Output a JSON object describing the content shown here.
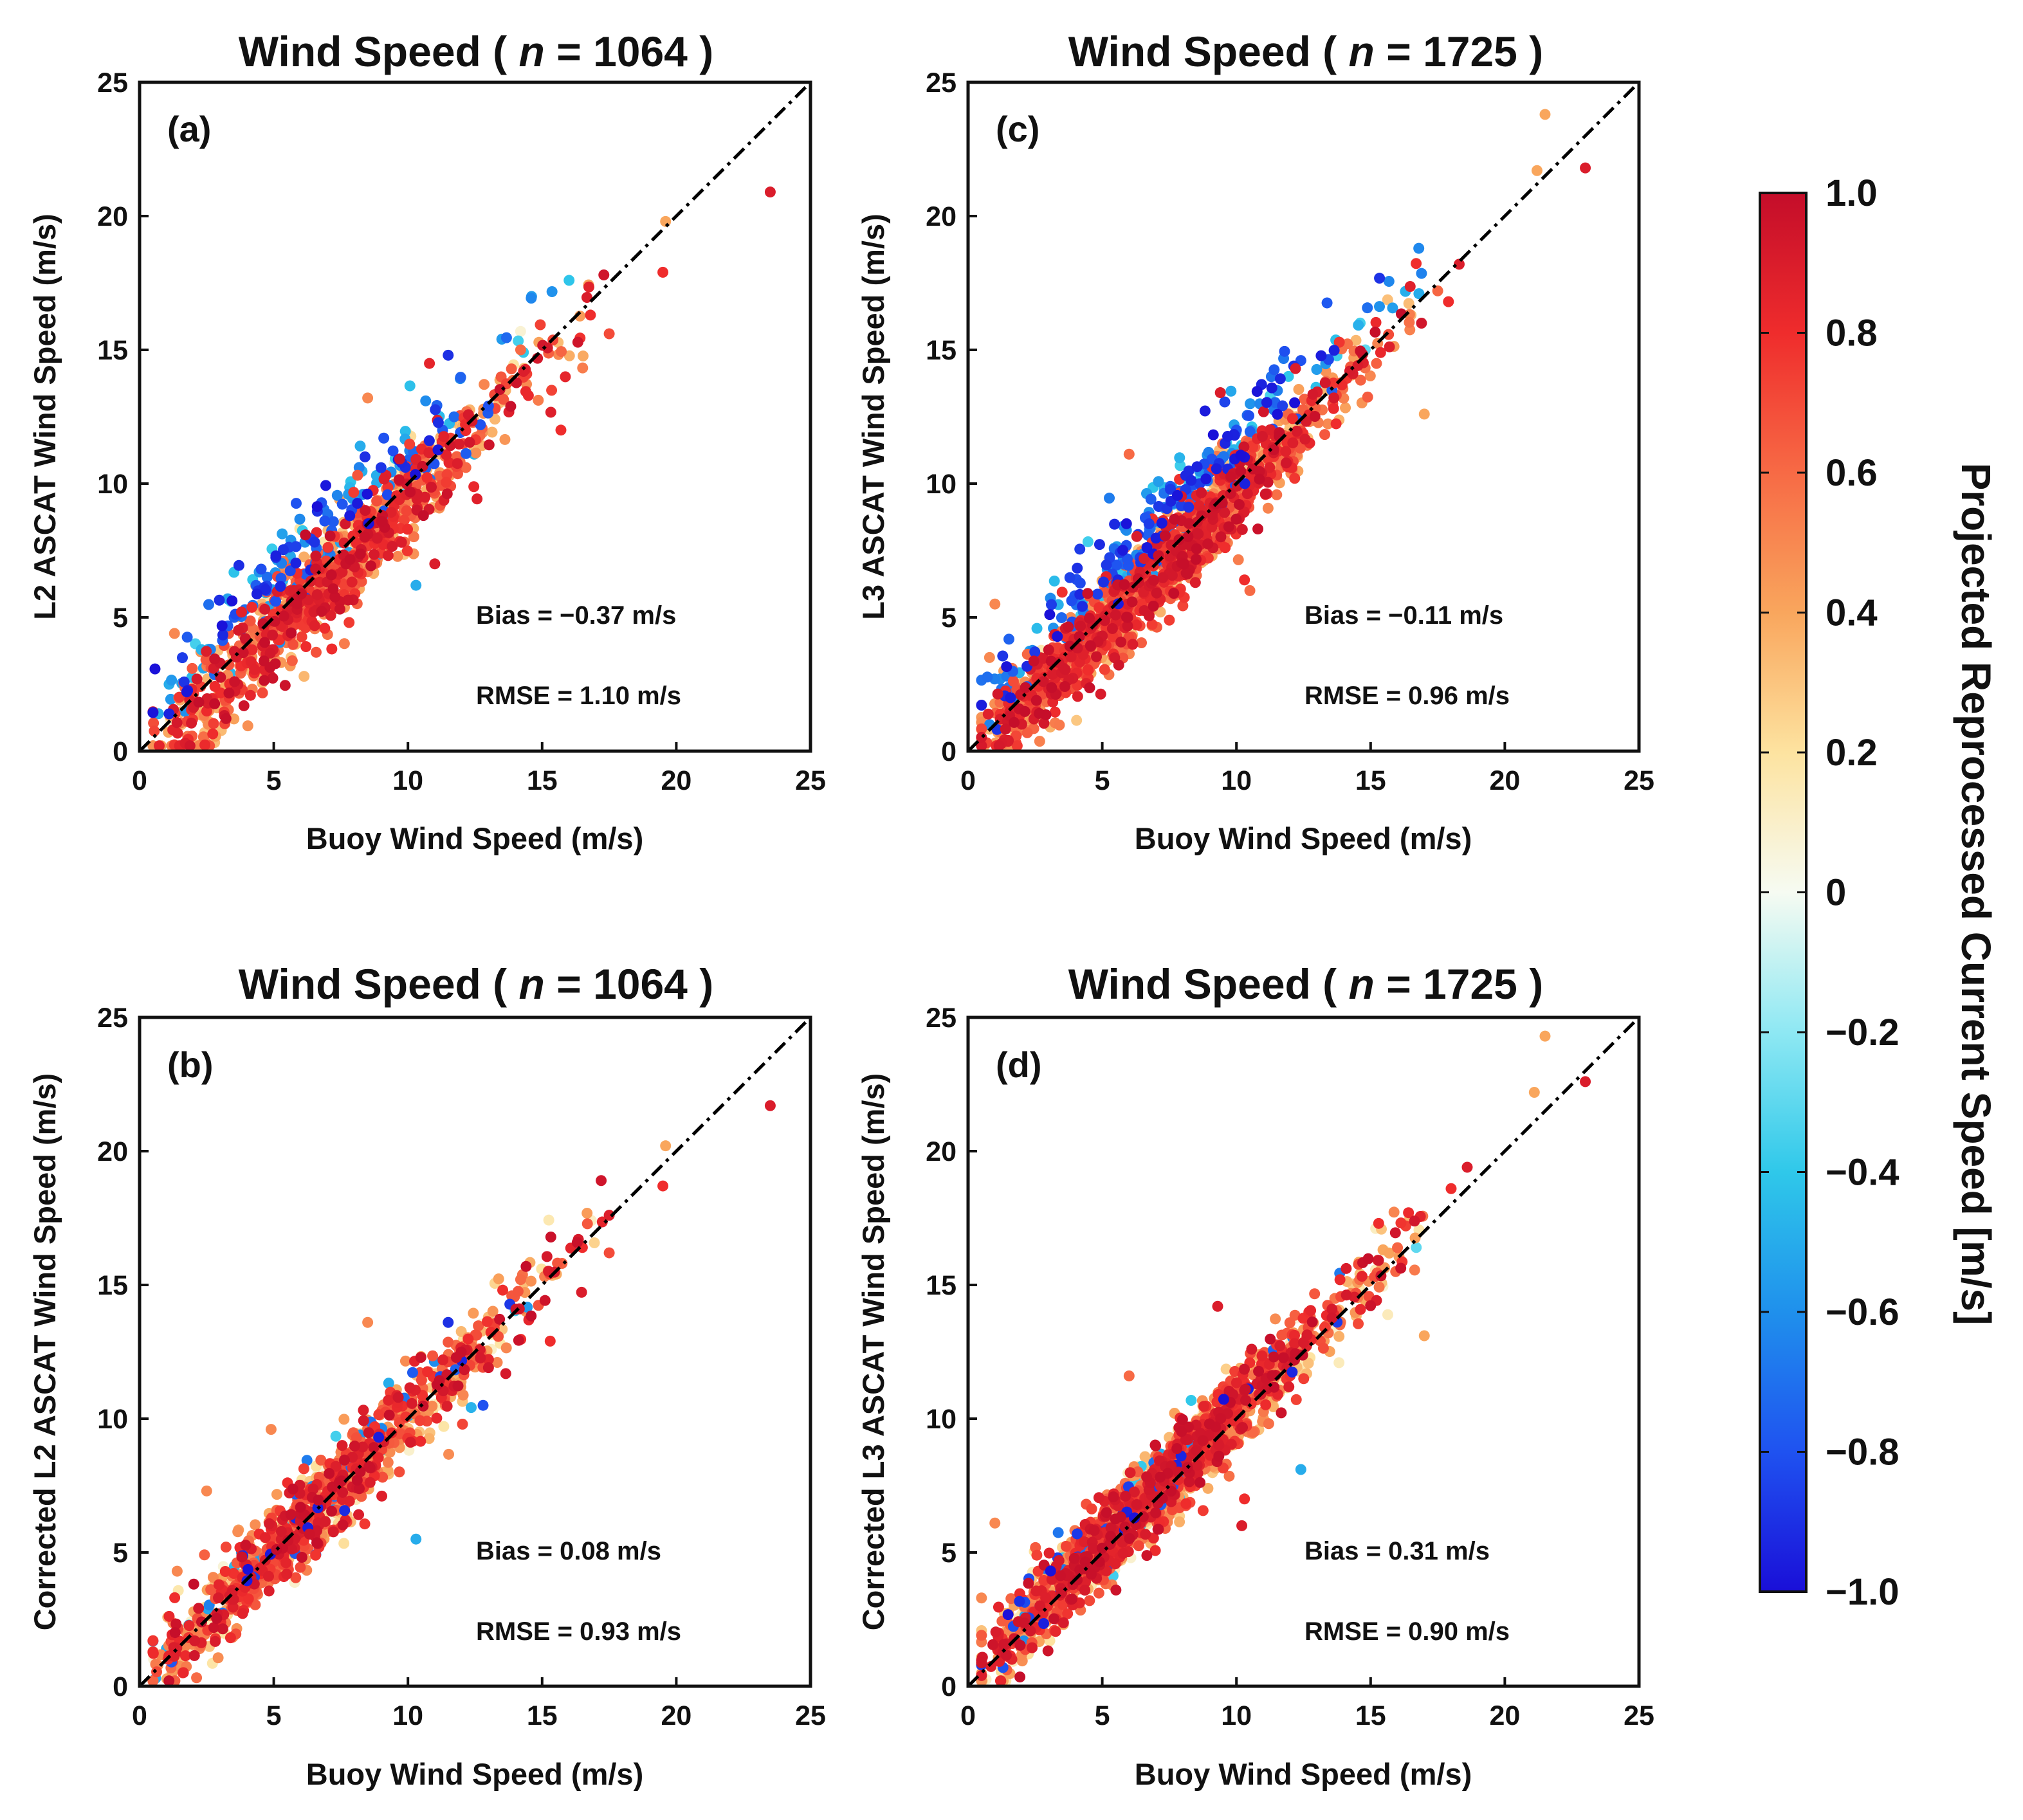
{
  "colorbar": {
    "label": "Projected Reprocessed Current Speed [m/s]",
    "range": [
      -1.0,
      1.0
    ],
    "ticks": [
      "1.0",
      "0.8",
      "0.6",
      "0.4",
      "0.2",
      "0",
      "−0.2",
      "−0.4",
      "−0.6",
      "−0.8",
      "−1.0"
    ],
    "colormap": [
      "#1a0fd8",
      "#1f52f0",
      "#1f90ec",
      "#2fc8ea",
      "#8ee8f3",
      "#f6fbf2",
      "#fde3a0",
      "#f9a65d",
      "#f76a45",
      "#ef2c2c",
      "#c40d2a"
    ]
  },
  "chart_data": [
    {
      "id": "a",
      "type": "scatter",
      "panel_label": "(a)",
      "title_prefix": "Wind Speed (",
      "title_n": "n",
      "title_eq": "= 1064 )",
      "xlabel": "Buoy Wind Speed (m/s)",
      "ylabel": "L2 ASCAT Wind Speed (m/s)",
      "xlim": [
        0,
        25
      ],
      "ylim": [
        0,
        25
      ],
      "xticks": [
        "0",
        "5",
        "10",
        "15",
        "20",
        "25"
      ],
      "yticks": [
        "0",
        "5",
        "10",
        "15",
        "20",
        "25"
      ],
      "stats": {
        "bias": "Bias  =  −0.37 m/s",
        "rmse": "RMSE = 1.10 m/s"
      },
      "one_to_one_line": true,
      "points_summary": {
        "n": 1064,
        "bias": -0.37,
        "rmse": 1.1,
        "x_range": [
          0.5,
          23.5
        ],
        "seed": 11
      },
      "notable_points": [
        {
          "x": 23.5,
          "y": 20.9,
          "c": 0.9
        },
        {
          "x": 19.5,
          "y": 17.9,
          "c": 0.8
        },
        {
          "x": 19.6,
          "y": 19.8,
          "c": 0.4
        },
        {
          "x": 17.3,
          "y": 17.8,
          "c": 0.95
        },
        {
          "x": 17.5,
          "y": 15.6,
          "c": 0.7
        },
        {
          "x": 16.8,
          "y": 16.3,
          "c": 0.8
        },
        {
          "x": 11.5,
          "y": 14.8,
          "c": -0.9
        },
        {
          "x": 10.3,
          "y": 6.2,
          "c": -0.5
        },
        {
          "x": 11.0,
          "y": 7.0,
          "c": 0.9
        },
        {
          "x": 9.1,
          "y": 11.7,
          "c": -0.8
        },
        {
          "x": 8.4,
          "y": 11.0,
          "c": -0.9
        },
        {
          "x": 12.7,
          "y": 12.2,
          "c": -0.8
        },
        {
          "x": 13.0,
          "y": 12.9,
          "c": -0.8
        },
        {
          "x": 1.1,
          "y": 2.5,
          "c": -0.5
        },
        {
          "x": 0.7,
          "y": 1.4,
          "c": -0.5
        },
        {
          "x": 1.3,
          "y": 4.4,
          "c": 0.5
        },
        {
          "x": 1.7,
          "y": 0.3,
          "c": 0.9
        },
        {
          "x": 15.7,
          "y": 12.0,
          "c": 0.8
        },
        {
          "x": 14.2,
          "y": 15.0,
          "c": 0.6
        },
        {
          "x": 8.5,
          "y": 13.2,
          "c": 0.5
        }
      ]
    },
    {
      "id": "c",
      "type": "scatter",
      "panel_label": "(c)",
      "title_prefix": "Wind Speed (",
      "title_n": "n",
      "title_eq": "= 1725 )",
      "xlabel": "Buoy Wind Speed (m/s)",
      "ylabel": "L3 ASCAT Wind Speed (m/s)",
      "xlim": [
        0,
        25
      ],
      "ylim": [
        0,
        25
      ],
      "xticks": [
        "0",
        "5",
        "10",
        "15",
        "20",
        "25"
      ],
      "yticks": [
        "0",
        "5",
        "10",
        "15",
        "20",
        "25"
      ],
      "stats": {
        "bias": "Bias  =  −0.11 m/s",
        "rmse": "RMSE = 0.96 m/s"
      },
      "one_to_one_line": true,
      "points_summary": {
        "n": 1725,
        "bias": -0.11,
        "rmse": 0.96,
        "x_range": [
          0.5,
          23.0
        ],
        "seed": 23
      },
      "notable_points": [
        {
          "x": 21.5,
          "y": 23.8,
          "c": 0.4
        },
        {
          "x": 21.2,
          "y": 21.7,
          "c": 0.4
        },
        {
          "x": 23.0,
          "y": 21.8,
          "c": 0.9
        },
        {
          "x": 18.3,
          "y": 18.2,
          "c": 0.9
        },
        {
          "x": 17.9,
          "y": 16.8,
          "c": 0.8
        },
        {
          "x": 16.8,
          "y": 17.1,
          "c": -0.5
        },
        {
          "x": 17.0,
          "y": 12.6,
          "c": 0.4
        },
        {
          "x": 12.4,
          "y": 14.6,
          "c": -0.8
        },
        {
          "x": 12.2,
          "y": 14.3,
          "c": 0.9
        },
        {
          "x": 10.3,
          "y": 6.4,
          "c": 0.8
        },
        {
          "x": 10.5,
          "y": 6.0,
          "c": 0.6
        },
        {
          "x": 6.0,
          "y": 11.1,
          "c": 0.6
        },
        {
          "x": 9.4,
          "y": 13.4,
          "c": 0.9
        },
        {
          "x": 0.8,
          "y": 3.5,
          "c": 0.5
        },
        {
          "x": 1.0,
          "y": 5.5,
          "c": 0.5
        },
        {
          "x": 1.2,
          "y": 1.2,
          "c": 0.9
        },
        {
          "x": 1.5,
          "y": 0.4,
          "c": 0.9
        },
        {
          "x": 14.8,
          "y": 15.0,
          "c": -0.3
        },
        {
          "x": 11.3,
          "y": 14.0,
          "c": -0.7
        },
        {
          "x": 10.0,
          "y": 12.0,
          "c": -0.8
        }
      ]
    },
    {
      "id": "b",
      "type": "scatter",
      "panel_label": "(b)",
      "title_prefix": "Wind Speed (",
      "title_n": "n",
      "title_eq": "= 1064 )",
      "xlabel": "Buoy Wind Speed (m/s)",
      "ylabel": "Corrected L2 ASCAT Wind Speed (m/s)",
      "xlim": [
        0,
        25
      ],
      "ylim": [
        0,
        25
      ],
      "xticks": [
        "0",
        "5",
        "10",
        "15",
        "20",
        "25"
      ],
      "yticks": [
        "0",
        "5",
        "10",
        "15",
        "20",
        "25"
      ],
      "stats": {
        "bias": "Bias  =  0.08 m/s",
        "rmse": "RMSE = 0.93 m/s"
      },
      "one_to_one_line": true,
      "points_summary": {
        "n": 1064,
        "bias": 0.08,
        "rmse": 0.93,
        "x_range": [
          0.5,
          23.5
        ],
        "seed": 37
      },
      "notable_points": [
        {
          "x": 23.5,
          "y": 21.7,
          "c": 0.9
        },
        {
          "x": 19.6,
          "y": 20.2,
          "c": 0.4
        },
        {
          "x": 19.5,
          "y": 18.7,
          "c": 0.8
        },
        {
          "x": 17.2,
          "y": 18.9,
          "c": 0.95
        },
        {
          "x": 17.5,
          "y": 16.2,
          "c": 0.7
        },
        {
          "x": 16.5,
          "y": 16.4,
          "c": 0.8
        },
        {
          "x": 10.3,
          "y": 5.5,
          "c": -0.5
        },
        {
          "x": 11.5,
          "y": 13.6,
          "c": -0.9
        },
        {
          "x": 12.8,
          "y": 10.5,
          "c": -0.8
        },
        {
          "x": 8.5,
          "y": 13.6,
          "c": 0.5
        },
        {
          "x": 4.9,
          "y": 9.6,
          "c": 0.5
        },
        {
          "x": 1.0,
          "y": 1.4,
          "c": -0.5
        },
        {
          "x": 0.6,
          "y": 0.3,
          "c": -0.5
        },
        {
          "x": 1.4,
          "y": 4.3,
          "c": 0.5
        },
        {
          "x": 15.3,
          "y": 12.9,
          "c": 0.8
        },
        {
          "x": 14.2,
          "y": 15.2,
          "c": 0.6
        },
        {
          "x": 2.5,
          "y": 7.3,
          "c": 0.5
        }
      ]
    },
    {
      "id": "d",
      "type": "scatter",
      "panel_label": "(d)",
      "title_prefix": "Wind Speed (",
      "title_n": "n",
      "title_eq": "= 1725 )",
      "xlabel": "Buoy Wind Speed (m/s)",
      "ylabel": "Corrected L3 ASCAT Wind Speed (m/s)",
      "xlim": [
        0,
        25
      ],
      "ylim": [
        0,
        25
      ],
      "xticks": [
        "0",
        "5",
        "10",
        "15",
        "20",
        "25"
      ],
      "yticks": [
        "0",
        "5",
        "10",
        "15",
        "20",
        "25"
      ],
      "stats": {
        "bias": "Bias  =  0.31 m/s",
        "rmse": "RMSE = 0.90 m/s"
      },
      "one_to_one_line": true,
      "points_summary": {
        "n": 1725,
        "bias": 0.31,
        "rmse": 0.9,
        "x_range": [
          0.5,
          23.0
        ],
        "seed": 53
      },
      "notable_points": [
        {
          "x": 21.5,
          "y": 24.3,
          "c": 0.4
        },
        {
          "x": 21.1,
          "y": 22.2,
          "c": 0.4
        },
        {
          "x": 23.0,
          "y": 22.6,
          "c": 0.9
        },
        {
          "x": 18.6,
          "y": 19.4,
          "c": 0.9
        },
        {
          "x": 18.0,
          "y": 18.6,
          "c": 0.8
        },
        {
          "x": 17.0,
          "y": 13.1,
          "c": 0.4
        },
        {
          "x": 12.4,
          "y": 8.1,
          "c": -0.5
        },
        {
          "x": 10.3,
          "y": 7.0,
          "c": 0.8
        },
        {
          "x": 6.0,
          "y": 11.6,
          "c": 0.6
        },
        {
          "x": 9.3,
          "y": 14.2,
          "c": 0.9
        },
        {
          "x": 1.0,
          "y": 6.1,
          "c": 0.5
        },
        {
          "x": 0.5,
          "y": 3.3,
          "c": 0.5
        },
        {
          "x": 1.2,
          "y": 1.3,
          "c": 0.9
        },
        {
          "x": 1.3,
          "y": 0.7,
          "c": -0.8
        },
        {
          "x": 16.7,
          "y": 16.4,
          "c": -0.3
        },
        {
          "x": 10.2,
          "y": 6.0,
          "c": 0.9
        },
        {
          "x": 15.3,
          "y": 17.3,
          "c": 0.8
        }
      ]
    }
  ]
}
